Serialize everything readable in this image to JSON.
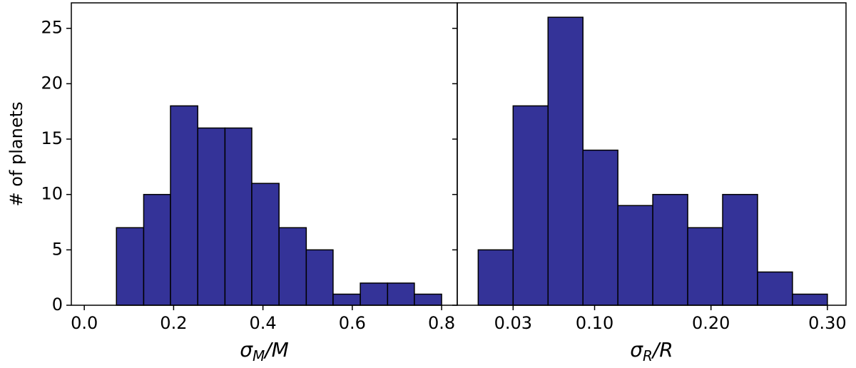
{
  "chart_data": [
    {
      "type": "histogram",
      "ylabel": "# of planets",
      "xlabel": [
        "σ",
        "M",
        "/M"
      ],
      "bins": [
        0.011,
        0.072,
        0.133,
        0.193,
        0.254,
        0.315,
        0.375,
        0.436,
        0.497,
        0.557,
        0.618,
        0.679,
        0.739,
        0.8
      ],
      "values": [
        0,
        7,
        10,
        18,
        16,
        16,
        11,
        7,
        5,
        1,
        2,
        2,
        1
      ],
      "color": "#343398",
      "edgecolor": "#000000",
      "xlim": [
        -0.029,
        0.835
      ],
      "xticks": [
        {
          "value": 0,
          "label": "0.0"
        },
        0.2,
        0.4,
        0.6,
        0.8
      ],
      "ylim": [
        0,
        27.3
      ],
      "yticks": [
        0,
        5,
        10,
        15,
        20,
        25
      ]
    },
    {
      "type": "histogram",
      "xlabel": [
        "σ",
        "R",
        "/R"
      ],
      "bins": [
        0,
        0.03,
        0.06,
        0.09,
        0.12,
        0.15,
        0.18,
        0.21,
        0.24,
        0.27,
        0.3
      ],
      "values": [
        5,
        18,
        26,
        14,
        9,
        10,
        7,
        10,
        3,
        1
      ],
      "color": "#343398",
      "edgecolor": "#000000",
      "xlim": [
        -0.018,
        0.316
      ],
      "xticks": [
        0.03,
        {
          "value": 0.1,
          "label": "0.10"
        },
        {
          "value": 0.2,
          "label": "0.20"
        },
        {
          "value": 0.3,
          "label": "0.30"
        }
      ],
      "ylim": [
        0,
        27.3
      ],
      "yticks": [
        0,
        5,
        10,
        15,
        20,
        25
      ]
    }
  ]
}
